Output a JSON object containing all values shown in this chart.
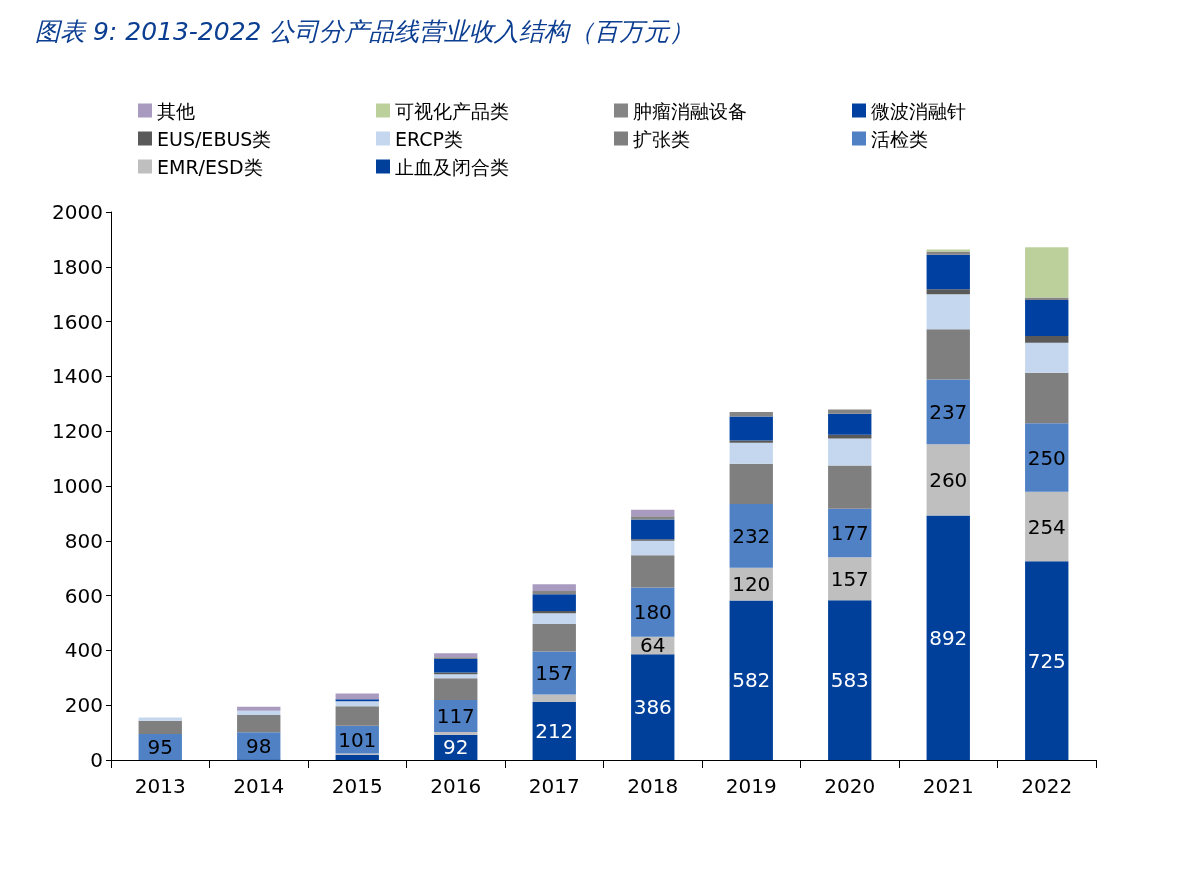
{
  "chart_data": {
    "type": "bar",
    "title": "图表 9: 2013-2022 公司分产品线营业收入结构（百万元）",
    "stacked": true,
    "categories": [
      "2013",
      "2014",
      "2015",
      "2016",
      "2017",
      "2018",
      "2019",
      "2020",
      "2021",
      "2022"
    ],
    "series": [
      {
        "name": "止血及闭合类",
        "color": "#00409a",
        "values": [
          0,
          3,
          18,
          92,
          212,
          386,
          582,
          583,
          892,
          725
        ],
        "value_labels": [
          null,
          null,
          null,
          "92",
          "212",
          "386",
          "582",
          "583",
          "892",
          "725"
        ]
      },
      {
        "name": "EMR/ESD类",
        "color": "#bfbfbf",
        "values": [
          0,
          0,
          6,
          10,
          27,
          64,
          120,
          157,
          260,
          254
        ],
        "value_labels": [
          null,
          null,
          null,
          null,
          null,
          "64",
          "120",
          "157",
          "260",
          "254"
        ]
      },
      {
        "name": "活检类",
        "color": "#4f81c4",
        "values": [
          95,
          98,
          101,
          117,
          157,
          180,
          232,
          177,
          237,
          250
        ],
        "value_labels": [
          "95",
          "98",
          "101",
          "117",
          "157",
          "180",
          "232",
          "177",
          "237",
          "250"
        ]
      },
      {
        "name": "扩张类",
        "color": "#7f7f7f",
        "values": [
          48,
          63,
          71,
          79,
          100,
          117,
          147,
          158,
          183,
          184
        ]
      },
      {
        "name": "ERCP类",
        "color": "#c5d7ee",
        "values": [
          12,
          16,
          18,
          15,
          40,
          53,
          77,
          98,
          128,
          110
        ]
      },
      {
        "name": "EUS/EBUS类",
        "color": "#595959",
        "values": [
          0,
          0,
          null,
          6,
          8,
          6,
          8,
          14,
          18,
          24
        ]
      },
      {
        "name": "微波消融针",
        "color": "#0040a0",
        "values": [
          0,
          0,
          8,
          50,
          61,
          72,
          88,
          77,
          126,
          132
        ]
      },
      {
        "name": "肿瘤消融设备",
        "color": "#858585",
        "values": [
          0,
          0,
          0,
          6,
          12,
          12,
          16,
          15,
          12,
          9
        ]
      },
      {
        "name": "可视化产品类",
        "color": "#bcd09b",
        "values": [
          0,
          0,
          0,
          0,
          0,
          0,
          0,
          0,
          7,
          183
        ]
      },
      {
        "name": "其他",
        "color": "#a99bc0",
        "values": [
          0,
          14,
          21,
          15,
          24,
          23,
          0,
          0,
          0,
          0
        ]
      }
    ],
    "ylim": [
      0,
      2000
    ],
    "yticks": [
      0,
      200,
      400,
      600,
      800,
      1000,
      1200,
      1400,
      1600,
      1800,
      2000
    ],
    "grid": false,
    "legend": "top left"
  }
}
